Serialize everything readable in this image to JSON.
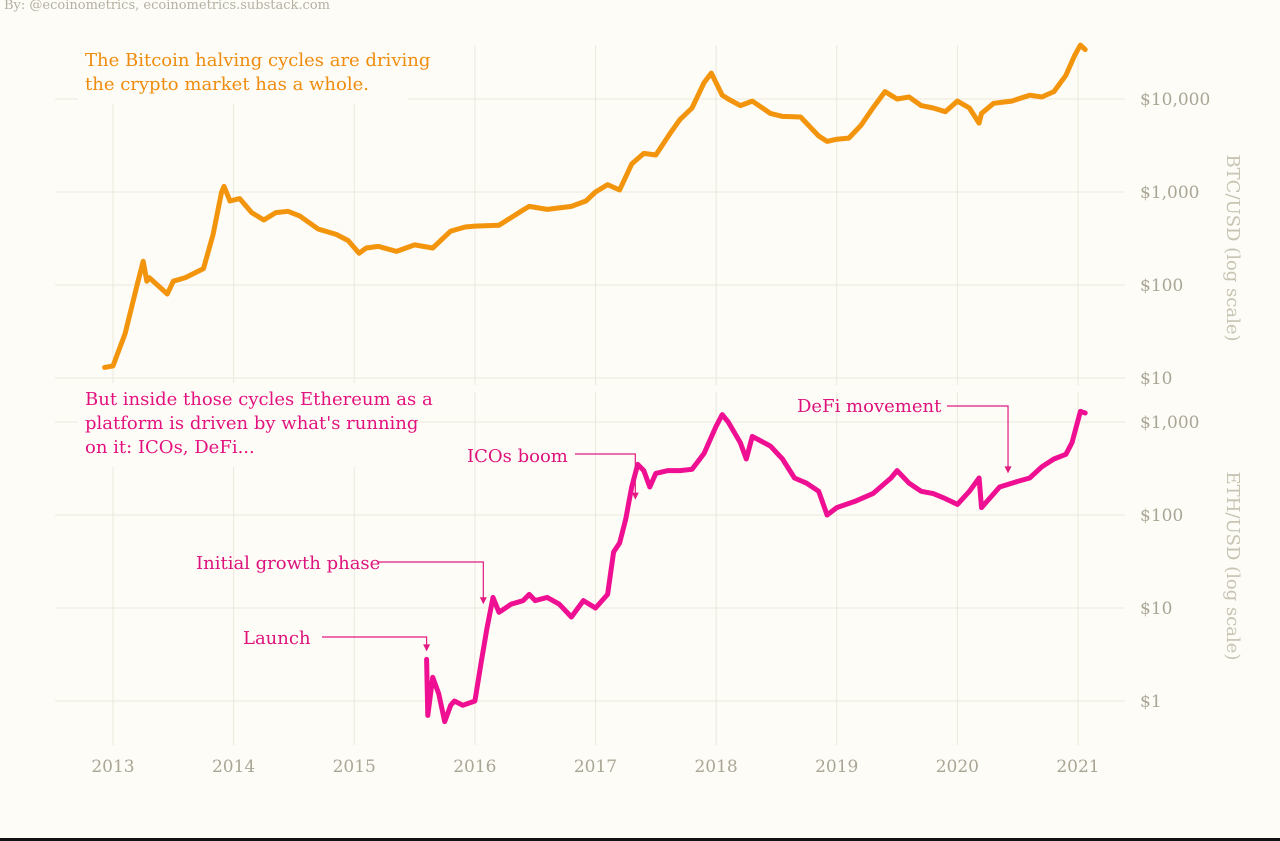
{
  "credit": "By: @ecoinometrics, ecoinometrics.substack.com",
  "colors": {
    "btc": "#f3940d",
    "eth": "#ef0f92",
    "annotation": "#e31a82",
    "background": "#fdfcf6"
  },
  "chart_data": [
    {
      "type": "line",
      "series": [
        {
          "name": "BTC",
          "color": "#f3940d"
        }
      ],
      "ylabel": "BTC/USD (log scale)",
      "yscale": "log",
      "ylim": [
        10,
        40000
      ],
      "yticks": [
        10,
        100,
        1000,
        10000
      ],
      "ytick_labels": [
        "$10",
        "$100",
        "$1,000",
        "$10,000"
      ],
      "note": [
        "The Bitcoin halving cycles are driving",
        "the crypto market has a whole."
      ],
      "x": [
        2012.93,
        2013.0,
        2013.1,
        2013.2,
        2013.25,
        2013.28,
        2013.3,
        2013.35,
        2013.45,
        2013.5,
        2013.6,
        2013.75,
        2013.83,
        2013.9,
        2013.92,
        2013.97,
        2014.05,
        2014.15,
        2014.25,
        2014.35,
        2014.45,
        2014.55,
        2014.7,
        2014.85,
        2014.95,
        2015.04,
        2015.1,
        2015.2,
        2015.35,
        2015.5,
        2015.65,
        2015.8,
        2015.92,
        2016.0,
        2016.2,
        2016.4,
        2016.45,
        2016.6,
        2016.8,
        2016.92,
        2017.0,
        2017.1,
        2017.2,
        2017.3,
        2017.4,
        2017.5,
        2017.62,
        2017.7,
        2017.8,
        2017.9,
        2017.96,
        2018.05,
        2018.1,
        2018.2,
        2018.3,
        2018.45,
        2018.55,
        2018.7,
        2018.85,
        2018.92,
        2019.0,
        2019.1,
        2019.2,
        2019.3,
        2019.4,
        2019.5,
        2019.6,
        2019.7,
        2019.8,
        2019.9,
        2020.0,
        2020.1,
        2020.18,
        2020.2,
        2020.3,
        2020.45,
        2020.6,
        2020.7,
        2020.8,
        2020.9,
        2020.97,
        2021.02,
        2021.06
      ],
      "y": [
        13,
        13.5,
        30,
        100,
        180,
        110,
        120,
        105,
        80,
        110,
        120,
        150,
        350,
        1000,
        1150,
        800,
        850,
        600,
        500,
        600,
        620,
        550,
        400,
        350,
        300,
        220,
        250,
        260,
        230,
        270,
        250,
        380,
        420,
        430,
        440,
        640,
        700,
        650,
        700,
        800,
        1000,
        1200,
        1050,
        2000,
        2600,
        2500,
        4300,
        6000,
        8000,
        15000,
        19000,
        11000,
        10000,
        8500,
        9500,
        7000,
        6500,
        6400,
        4000,
        3500,
        3700,
        3800,
        5200,
        8000,
        12000,
        10000,
        10500,
        8500,
        8000,
        7300,
        9500,
        8000,
        5500,
        7000,
        9000,
        9500,
        11000,
        10500,
        12000,
        18000,
        29000,
        38000,
        34000
      ]
    },
    {
      "type": "line",
      "series": [
        {
          "name": "ETH",
          "color": "#ef0f92"
        }
      ],
      "ylabel": "ETH/USD (log scale)",
      "yscale": "log",
      "ylim": [
        0.5,
        1400
      ],
      "yticks": [
        1,
        10,
        100,
        1000
      ],
      "ytick_labels": [
        "$1",
        "$10",
        "$100",
        "$1,000"
      ],
      "note": [
        "But inside those cycles Ethereum as a",
        "platform is driven by what's running",
        "on it: ICOs, DeFi..."
      ],
      "x": [
        2015.6,
        2015.61,
        2015.65,
        2015.7,
        2015.75,
        2015.8,
        2015.83,
        2015.9,
        2016.0,
        2016.05,
        2016.1,
        2016.15,
        2016.2,
        2016.3,
        2016.4,
        2016.45,
        2016.5,
        2016.6,
        2016.7,
        2016.8,
        2016.9,
        2017.0,
        2017.1,
        2017.15,
        2017.2,
        2017.25,
        2017.3,
        2017.35,
        2017.4,
        2017.45,
        2017.5,
        2017.6,
        2017.7,
        2017.8,
        2017.9,
        2018.0,
        2018.05,
        2018.1,
        2018.2,
        2018.25,
        2018.3,
        2018.45,
        2018.55,
        2018.65,
        2018.75,
        2018.85,
        2018.92,
        2019.0,
        2019.15,
        2019.3,
        2019.45,
        2019.5,
        2019.6,
        2019.7,
        2019.8,
        2019.9,
        2020.0,
        2020.1,
        2020.18,
        2020.2,
        2020.35,
        2020.5,
        2020.6,
        2020.7,
        2020.8,
        2020.9,
        2020.95,
        2021.02,
        2021.06
      ],
      "y": [
        2.8,
        0.7,
        1.8,
        1.2,
        0.6,
        0.9,
        1.0,
        0.9,
        1.0,
        2.5,
        6,
        13,
        9,
        11,
        12,
        14,
        12,
        13,
        11,
        8,
        12,
        10,
        14,
        40,
        50,
        90,
        200,
        350,
        300,
        200,
        280,
        300,
        300,
        310,
        460,
        900,
        1200,
        1000,
        600,
        400,
        700,
        550,
        400,
        250,
        220,
        180,
        100,
        120,
        140,
        170,
        250,
        300,
        220,
        180,
        170,
        150,
        130,
        180,
        250,
        120,
        200,
        230,
        250,
        330,
        400,
        450,
        600,
        1300,
        1250
      ]
    }
  ],
  "x_axis": {
    "ticks": [
      2013,
      2014,
      2015,
      2016,
      2017,
      2018,
      2019,
      2020,
      2021
    ],
    "tick_labels": [
      "2013",
      "2014",
      "2015",
      "2016",
      "2017",
      "2018",
      "2019",
      "2020",
      "2021"
    ]
  },
  "annotations": [
    {
      "text": "Launch",
      "x": 2015.6,
      "y": 2.8
    },
    {
      "text": "Initial growth phase",
      "x": 2016.07,
      "y": 9
    },
    {
      "text": "ICOs boom",
      "x": 2017.33,
      "y": 120
    },
    {
      "text": "DeFi movement",
      "x": 2020.42,
      "y": 230
    }
  ]
}
